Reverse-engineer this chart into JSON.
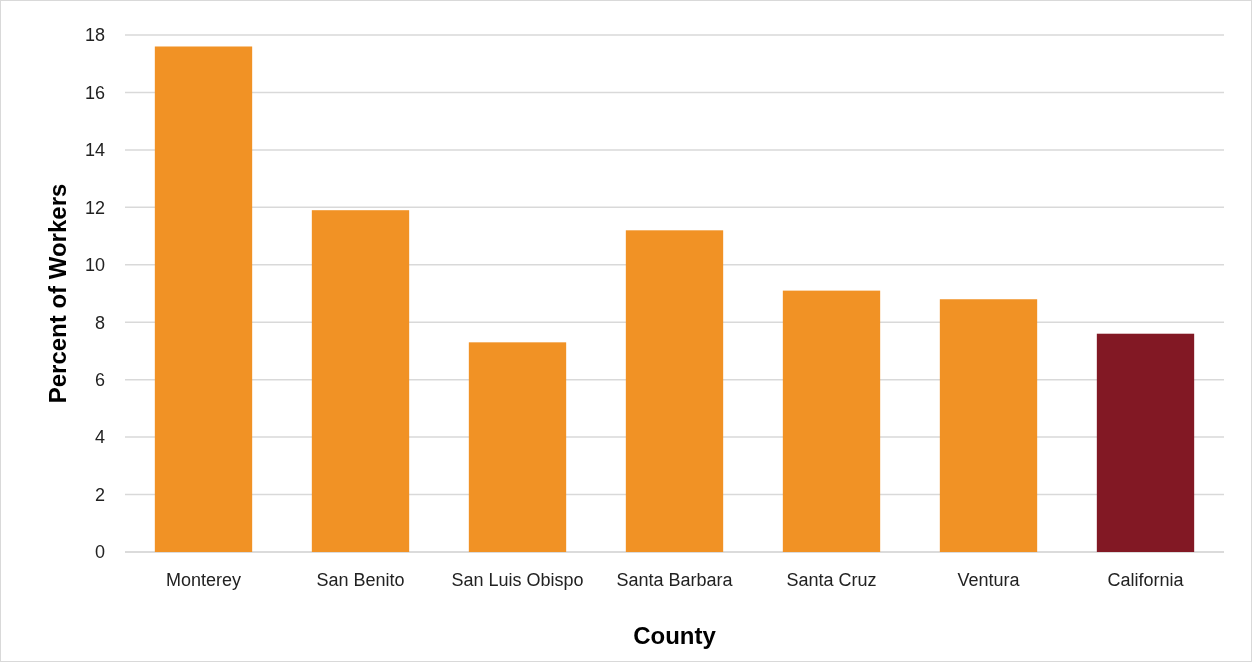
{
  "chart_data": {
    "type": "bar",
    "xlabel": "County",
    "ylabel": "Percent of Workers",
    "categories": [
      "Monterey",
      "San Benito",
      "San Luis Obispo",
      "Santa Barbara",
      "Santa Cruz",
      "Ventura",
      "California"
    ],
    "values": [
      17.6,
      11.9,
      7.3,
      11.2,
      9.1,
      8.8,
      7.6
    ],
    "colors": [
      "#f19225",
      "#f19225",
      "#f19225",
      "#f19225",
      "#f19225",
      "#f19225",
      "#821824"
    ],
    "ylim": [
      0,
      18
    ],
    "yticks": [
      0,
      2,
      4,
      6,
      8,
      10,
      12,
      14,
      16,
      18
    ],
    "grid": "y"
  }
}
